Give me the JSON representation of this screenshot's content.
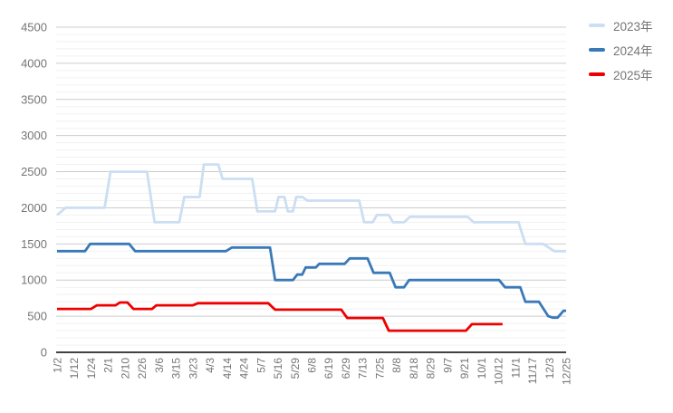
{
  "chart_data": {
    "type": "line",
    "title": "",
    "xlabel": "",
    "ylabel": "",
    "legend_position": "right-top",
    "grid": {
      "major_color": "#cccccc",
      "minor_color": "#f1f1f1",
      "axis_color": "#424242",
      "vertical_gridlines": false
    },
    "text_color": "#757575",
    "x_axis": {
      "tick_labels": [
        "1/2",
        "1/12",
        "1/24",
        "2/1",
        "2/10",
        "2/26",
        "3/6",
        "3/15",
        "3/23",
        "4/3",
        "4/14",
        "4/24",
        "5/7",
        "5/16",
        "5/29",
        "6/8",
        "6/19",
        "6/29",
        "7/13",
        "7/25",
        "8/8",
        "8/18",
        "8/29",
        "9/7",
        "9/21",
        "10/1",
        "10/12",
        "11/1",
        "11/17",
        "12/3",
        "12/25"
      ],
      "rotation_deg": -90
    },
    "y_axis": {
      "min": 0,
      "max": 4500,
      "major_step": 500,
      "minor_step": 100,
      "tick_labels": [
        "0",
        "500",
        "1000",
        "1500",
        "2000",
        "2500",
        "3000",
        "3500",
        "4000",
        "4500"
      ]
    },
    "series": [
      {
        "name": "2023年",
        "color": "#cbdef2",
        "points": [
          [
            0,
            1900
          ],
          [
            0.5,
            2000
          ],
          [
            2.8,
            2000
          ],
          [
            3.15,
            2500
          ],
          [
            5.3,
            2500
          ],
          [
            5.75,
            1800
          ],
          [
            7.2,
            1800
          ],
          [
            7.5,
            2150
          ],
          [
            8.4,
            2150
          ],
          [
            8.65,
            2600
          ],
          [
            9.5,
            2600
          ],
          [
            9.75,
            2400
          ],
          [
            11.5,
            2400
          ],
          [
            11.8,
            1950
          ],
          [
            12.85,
            1950
          ],
          [
            13.05,
            2150
          ],
          [
            13.4,
            2150
          ],
          [
            13.6,
            1950
          ],
          [
            13.9,
            1950
          ],
          [
            14.1,
            2150
          ],
          [
            14.45,
            2150
          ],
          [
            14.75,
            2100
          ],
          [
            17.8,
            2100
          ],
          [
            18.1,
            1800
          ],
          [
            18.6,
            1800
          ],
          [
            18.85,
            1900
          ],
          [
            19.55,
            1900
          ],
          [
            19.8,
            1800
          ],
          [
            20.45,
            1800
          ],
          [
            20.8,
            1875
          ],
          [
            24.2,
            1875
          ],
          [
            24.55,
            1800
          ],
          [
            27.2,
            1800
          ],
          [
            27.6,
            1500
          ],
          [
            28.65,
            1500
          ],
          [
            29.3,
            1400
          ],
          [
            30,
            1400
          ]
        ]
      },
      {
        "name": "2024年",
        "color": "#3a79b8",
        "points": [
          [
            0,
            1400
          ],
          [
            1.65,
            1400
          ],
          [
            1.95,
            1500
          ],
          [
            4.25,
            1500
          ],
          [
            4.6,
            1400
          ],
          [
            9.95,
            1400
          ],
          [
            10.3,
            1450
          ],
          [
            12.55,
            1450
          ],
          [
            12.85,
            1000
          ],
          [
            13.9,
            1000
          ],
          [
            14.15,
            1075
          ],
          [
            14.45,
            1075
          ],
          [
            14.65,
            1175
          ],
          [
            15.25,
            1175
          ],
          [
            15.45,
            1225
          ],
          [
            16.95,
            1225
          ],
          [
            17.25,
            1300
          ],
          [
            18.3,
            1300
          ],
          [
            18.65,
            1100
          ],
          [
            19.6,
            1100
          ],
          [
            19.95,
            900
          ],
          [
            20.45,
            900
          ],
          [
            20.75,
            1000
          ],
          [
            26.05,
            1000
          ],
          [
            26.4,
            900
          ],
          [
            27.3,
            900
          ],
          [
            27.6,
            700
          ],
          [
            28.4,
            700
          ],
          [
            28.95,
            500
          ],
          [
            29.2,
            480
          ],
          [
            29.5,
            480
          ],
          [
            29.85,
            575
          ],
          [
            30,
            575
          ]
        ]
      },
      {
        "name": "2025年",
        "color": "#ee0000",
        "points": [
          [
            0,
            600
          ],
          [
            2,
            600
          ],
          [
            2.35,
            650
          ],
          [
            3.45,
            650
          ],
          [
            3.7,
            690
          ],
          [
            4.15,
            690
          ],
          [
            4.5,
            600
          ],
          [
            5.6,
            600
          ],
          [
            5.85,
            650
          ],
          [
            8,
            650
          ],
          [
            8.3,
            680
          ],
          [
            12.45,
            680
          ],
          [
            12.85,
            590
          ],
          [
            16.75,
            590
          ],
          [
            17.1,
            475
          ],
          [
            19.2,
            475
          ],
          [
            19.55,
            300
          ],
          [
            24.1,
            300
          ],
          [
            24.45,
            390
          ],
          [
            26.25,
            390
          ]
        ]
      }
    ]
  }
}
